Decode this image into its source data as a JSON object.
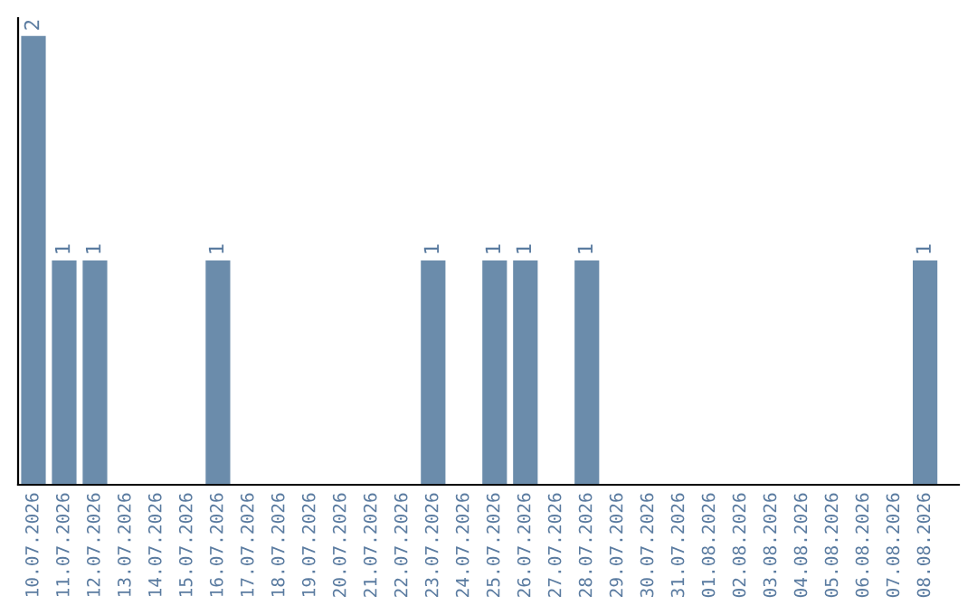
{
  "chart_data": {
    "type": "bar",
    "categories": [
      "10.07.2026",
      "11.07.2026",
      "12.07.2026",
      "13.07.2026",
      "14.07.2026",
      "15.07.2026",
      "16.07.2026",
      "17.07.2026",
      "18.07.2026",
      "19.07.2026",
      "20.07.2026",
      "21.07.2026",
      "22.07.2026",
      "23.07.2026",
      "24.07.2026",
      "25.07.2026",
      "26.07.2026",
      "27.07.2026",
      "28.07.2026",
      "29.07.2026",
      "30.07.2026",
      "31.07.2026",
      "01.08.2026",
      "02.08.2026",
      "03.08.2026",
      "04.08.2026",
      "05.08.2026",
      "06.08.2026",
      "07.08.2026",
      "08.08.2026"
    ],
    "values": [
      2,
      1,
      1,
      0,
      0,
      0,
      1,
      0,
      0,
      0,
      0,
      0,
      0,
      1,
      0,
      1,
      1,
      0,
      1,
      0,
      0,
      0,
      0,
      0,
      0,
      0,
      0,
      0,
      0,
      1
    ],
    "value_labels": [
      "2",
      "1",
      "1",
      null,
      null,
      null,
      "1",
      null,
      null,
      null,
      null,
      null,
      null,
      "1",
      null,
      "1",
      "1",
      null,
      "1",
      null,
      null,
      null,
      null,
      null,
      null,
      null,
      null,
      null,
      null,
      "1"
    ],
    "color": "#6b8cab",
    "grid": false,
    "legend": false
  }
}
